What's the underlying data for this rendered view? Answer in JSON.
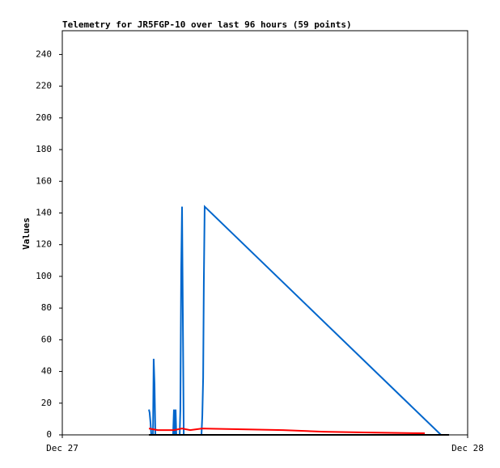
{
  "chart_data": {
    "type": "line",
    "title": "Telemetry for JR5FGP-10 over last 96 hours (59 points)",
    "y_label": "Values",
    "xlim": [
      0,
      24
    ],
    "xticks": [
      {
        "value": 0,
        "label": "Dec 27"
      },
      {
        "value": 24,
        "label": "Dec 28"
      }
    ],
    "ylim": [
      0,
      255
    ],
    "yticks": [
      0,
      20,
      40,
      60,
      80,
      100,
      120,
      140,
      160,
      180,
      200,
      220,
      240
    ],
    "grid": false,
    "series": [
      {
        "color": "#0066cc",
        "x": [
          5.13,
          5.17,
          5.22,
          5.27,
          5.37,
          5.41,
          5.46,
          5.51,
          6.56,
          6.61,
          6.66,
          6.71,
          6.75,
          6.95,
          6.99,
          7.04,
          7.09,
          7.14,
          7.19,
          8.24,
          8.29,
          8.34,
          8.38,
          8.43,
          22.42,
          22.9
        ],
        "values": [
          16,
          14,
          8,
          0,
          0,
          48,
          32,
          0,
          0,
          16,
          0,
          16,
          0,
          0,
          16,
          104,
          144,
          72,
          0,
          0,
          12,
          36,
          96,
          144,
          0,
          0
        ]
      },
      {
        "color": "#ff0000",
        "x": [
          5.13,
          5.65,
          6.61,
          7.09,
          7.57,
          8.29,
          10.68,
          13.08,
          15.47,
          17.87,
          21.46
        ],
        "values": [
          4,
          3,
          3,
          4,
          3,
          4,
          3.5,
          3,
          2,
          1.5,
          1
        ]
      },
      {
        "color": "#000000",
        "x": [
          5.13,
          22.9
        ],
        "values": [
          0,
          0
        ]
      }
    ]
  }
}
